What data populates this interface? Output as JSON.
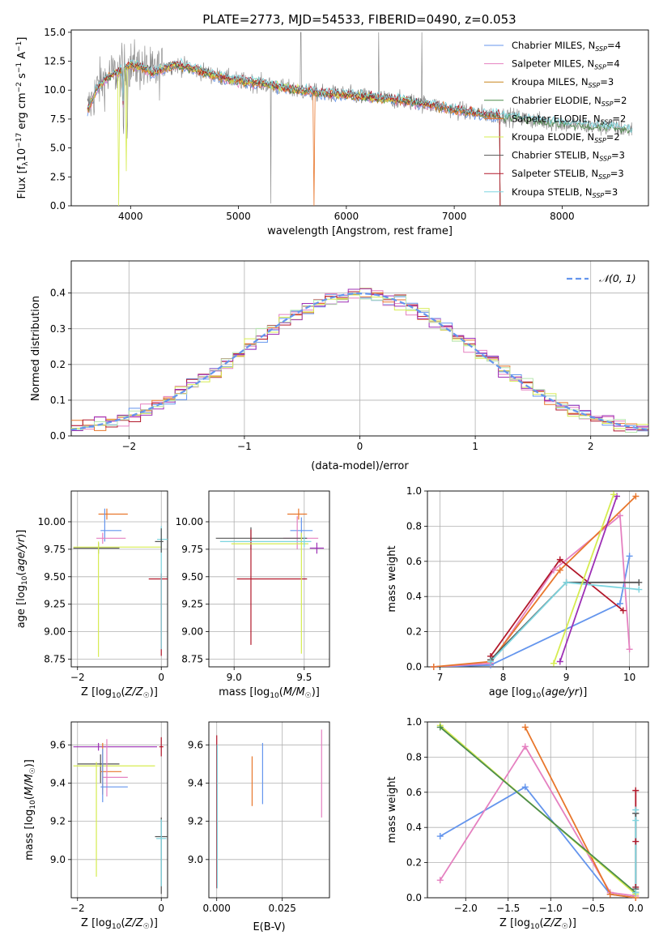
{
  "figure": {
    "title": "PLATE=2773, MJD=54533, FIBERID=0490, z=0.053"
  },
  "chart_data": [
    {
      "id": "spectrum",
      "type": "line",
      "title": "PLATE=2773, MJD=54533, FIBERID=0490, z=0.053",
      "xlabel": "wavelength [Angstrom, rest frame]",
      "ylabel": "Flux [f_λ10^-17 erg cm^-2 s^-1 A^-1]",
      "xlim": [
        3450,
        8800
      ],
      "ylim": [
        0,
        15.2
      ],
      "xticks": [
        4000,
        5000,
        6000,
        7000,
        8000
      ],
      "yticks": [
        0.0,
        2.5,
        5.0,
        7.5,
        10.0,
        12.5,
        15.0
      ],
      "ytick_labels": [
        "0.0",
        "2.5",
        "5.0",
        "7.5",
        "10.0",
        "12.5",
        "15.0"
      ],
      "grid": false,
      "legend_position": "top-right",
      "legend": [
        {
          "label": "Chabrier MILES, N_SSP=4",
          "color": "#6495ED"
        },
        {
          "label": "Salpeter MILES, N_SSP=4",
          "color": "#E580C0"
        },
        {
          "label": "Kroupa MILES, N_SSP=3",
          "color": "#C8861E"
        },
        {
          "label": "Chabrier ELODIE, N_SSP=2",
          "color": "#4C8C4C"
        },
        {
          "label": "Salpeter ELODIE, N_SSP=2",
          "color": "#E8762B"
        },
        {
          "label": "Kroupa ELODIE, N_SSP=2",
          "color": "#D6EC50"
        },
        {
          "label": "Chabrier STELIB, N_SSP=3",
          "color": "#555555"
        },
        {
          "label": "Salpeter STELIB, N_SSP=3",
          "color": "#B2182B"
        },
        {
          "label": "Kroupa STELIB, N_SSP=3",
          "color": "#7ED6E0"
        }
      ],
      "continuum": {
        "x": [
          3600,
          3700,
          3800,
          3900,
          4000,
          4100,
          4200,
          4400,
          4600,
          4800,
          5000,
          5200,
          5400,
          5600,
          5800,
          6000,
          6200,
          6400,
          6600,
          6800,
          7000,
          7200,
          7400,
          7600,
          7800,
          8000,
          8200,
          8400,
          8600
        ],
        "y": [
          8.2,
          10.4,
          11.2,
          11.6,
          12.2,
          12.0,
          11.5,
          12.2,
          11.8,
          11.2,
          10.8,
          10.6,
          10.2,
          9.9,
          9.7,
          9.6,
          9.4,
          9.2,
          9.0,
          8.7,
          8.3,
          8.0,
          7.8,
          7.6,
          7.3,
          7.1,
          6.9,
          6.8,
          6.6
        ]
      },
      "data_color": "#808080"
    },
    {
      "id": "residuals",
      "type": "line",
      "xlabel": "(data-model)/error",
      "ylabel": "Normed distribution",
      "xlim": [
        -2.5,
        2.5
      ],
      "ylim": [
        0,
        0.49
      ],
      "xticks": [
        -2,
        -1,
        0,
        1,
        2
      ],
      "xtick_labels": [
        "−2",
        "−1",
        "0",
        "1",
        "2"
      ],
      "yticks": [
        0.0,
        0.1,
        0.2,
        0.3,
        0.4
      ],
      "ytick_labels": [
        "0.0",
        "0.1",
        "0.2",
        "0.3",
        "0.4"
      ],
      "grid": true,
      "legend_position": "top-right",
      "legend": [
        {
          "label": "𝒩(0, 1)",
          "color": "#6495ED"
        }
      ],
      "bin_width": 0.1,
      "hist_colors": [
        "#6495ED",
        "#E580C0",
        "#E8762B",
        "#B2182B",
        "#D6EC50",
        "#9D2FB5",
        "#B8E6B0"
      ]
    },
    {
      "id": "age-vs-z",
      "type": "scatter",
      "xlabel": "Z [log10(Z/Z☉)]",
      "ylabel": "age [log10(age/yr)]",
      "xlim": [
        -2.15,
        0.15
      ],
      "ylim": [
        8.68,
        10.28
      ],
      "xticks": [
        -2,
        0
      ],
      "xtick_labels": [
        "−2",
        "0"
      ],
      "yticks": [
        8.75,
        9.0,
        9.25,
        9.5,
        9.75,
        10.0
      ],
      "ytick_labels": [
        "8.75",
        "9.00",
        "9.25",
        "9.50",
        "9.75",
        "10.00"
      ],
      "grid": true,
      "points": [
        {
          "x": -1.3,
          "y": 10.07,
          "xerr": [
            0.2,
            0.5
          ],
          "yerr": [
            0.05,
            0.05
          ],
          "color": "#E8762B"
        },
        {
          "x": -1.35,
          "y": 9.92,
          "xerr": [
            0.1,
            0.4
          ],
          "yerr": [
            0.1,
            0.2
          ],
          "color": "#6495ED"
        },
        {
          "x": -1.4,
          "y": 9.85,
          "xerr": [
            0.15,
            0.55
          ],
          "yerr": [
            0.05,
            0.05
          ],
          "color": "#E580C0"
        },
        {
          "x": -1.5,
          "y": 9.76,
          "xerr": [
            0.6,
            0.5
          ],
          "yerr": [
            0.05,
            0.05
          ],
          "color": "#555555"
        },
        {
          "x": -1.5,
          "y": 9.77,
          "xerr": [
            0.6,
            1.5
          ],
          "yerr": [
            1.0,
            0.05
          ],
          "color": "#D6EC50"
        },
        {
          "x": 0.0,
          "y": 9.48,
          "xerr": [
            0.3,
            0.2
          ],
          "yerr": [
            0.7,
            0.05
          ],
          "color": "#B2182B"
        },
        {
          "x": 0.0,
          "y": 9.84,
          "xerr": [
            0.1,
            0.2
          ],
          "yerr": [
            1.0,
            0.12
          ],
          "color": "#7ED6E0"
        },
        {
          "x": 0.0,
          "y": 9.82,
          "xerr": [
            0.15,
            0.05
          ],
          "yerr": [
            0.1,
            0.12
          ],
          "color": "#555555"
        }
      ]
    },
    {
      "id": "age-vs-mass",
      "type": "scatter",
      "xlabel": "mass [log10(M/M☉)]",
      "ylabel": "",
      "xlim": [
        8.82,
        9.68
      ],
      "ylim": [
        8.68,
        10.28
      ],
      "xticks": [
        9.0,
        9.5
      ],
      "xtick_labels": [
        "9.0",
        "9.5"
      ],
      "yticks": [
        8.75,
        9.0,
        9.25,
        9.5,
        9.75,
        10.0
      ],
      "ytick_labels": [
        "8.75",
        "9.00",
        "9.25",
        "9.50",
        "9.75",
        "10.00"
      ],
      "grid": true,
      "points": [
        {
          "x": 9.46,
          "y": 10.07,
          "xerr": [
            0.08,
            0.06
          ],
          "yerr": [
            0.05,
            0.05
          ],
          "color": "#E8762B"
        },
        {
          "x": 9.48,
          "y": 9.92,
          "xerr": [
            0.08,
            0.08
          ],
          "yerr": [
            0.12,
            0.12
          ],
          "color": "#6495ED"
        },
        {
          "x": 9.45,
          "y": 9.85,
          "xerr": [
            0.1,
            0.15
          ],
          "yerr": [
            0.1,
            0.2
          ],
          "color": "#E580C0"
        },
        {
          "x": 9.12,
          "y": 9.85,
          "xerr": [
            0.25,
            0.4
          ],
          "yerr": [
            0.1,
            0.1
          ],
          "color": "#555555"
        },
        {
          "x": 9.12,
          "y": 9.48,
          "xerr": [
            0.1,
            0.4
          ],
          "yerr": [
            0.6,
            0.45
          ],
          "color": "#B2182B"
        },
        {
          "x": 9.48,
          "y": 9.8,
          "xerr": [
            0.5,
            0.05
          ],
          "yerr": [
            1.0,
            0.1
          ],
          "color": "#D6EC50"
        },
        {
          "x": 9.5,
          "y": 9.82,
          "xerr": [
            0.6,
            0.05
          ],
          "yerr": [
            0.05,
            0.05
          ],
          "color": "#7ED6E0"
        },
        {
          "x": 9.59,
          "y": 9.76,
          "xerr": [
            0.05,
            0.05
          ],
          "yerr": [
            0.05,
            0.05
          ],
          "color": "#9D2FB5"
        }
      ]
    },
    {
      "id": "weight-vs-age",
      "type": "line",
      "xlabel": "age [log10(age/yr)]",
      "ylabel": "mass weight",
      "xlim": [
        6.8,
        10.3
      ],
      "ylim": [
        0,
        1.0
      ],
      "xticks": [
        7,
        8,
        9,
        10
      ],
      "yticks": [
        0.0,
        0.2,
        0.4,
        0.6,
        0.8,
        1.0
      ],
      "ytick_labels": [
        "0.0",
        "0.2",
        "0.4",
        "0.6",
        "0.8",
        "1.0"
      ],
      "grid": true,
      "series": [
        {
          "color": "#6495ED",
          "x": [
            6.9,
            7.8,
            9.85,
            10.0
          ],
          "y": [
            0.0,
            0.01,
            0.36,
            0.63
          ]
        },
        {
          "color": "#E580C0",
          "x": [
            6.9,
            7.8,
            8.8,
            9.85,
            10.0
          ],
          "y": [
            0.0,
            0.02,
            0.55,
            0.86,
            0.1
          ]
        },
        {
          "color": "#E8762B",
          "x": [
            6.9,
            7.8,
            8.9,
            10.1
          ],
          "y": [
            0.0,
            0.03,
            0.55,
            0.97
          ]
        },
        {
          "color": "#B2182B",
          "x": [
            7.8,
            8.9,
            9.9
          ],
          "y": [
            0.06,
            0.61,
            0.32
          ]
        },
        {
          "color": "#555555",
          "x": [
            7.8,
            9.0,
            10.15
          ],
          "y": [
            0.04,
            0.48,
            0.48
          ]
        },
        {
          "color": "#7ED6E0",
          "x": [
            7.8,
            9.0,
            10.15
          ],
          "y": [
            0.03,
            0.48,
            0.44
          ]
        },
        {
          "color": "#9D2FB5",
          "x": [
            8.9,
            9.8
          ],
          "y": [
            0.03,
            0.97
          ]
        },
        {
          "color": "#D6EC50",
          "x": [
            8.8,
            9.75
          ],
          "y": [
            0.02,
            0.98
          ]
        }
      ]
    },
    {
      "id": "mass-vs-z",
      "type": "scatter",
      "xlabel": "Z [log10(Z/Z☉)]",
      "ylabel": "mass [log10(M/M☉)]",
      "xlim": [
        -2.15,
        0.15
      ],
      "ylim": [
        8.8,
        9.72
      ],
      "xticks": [
        -2,
        0
      ],
      "xtick_labels": [
        "−2",
        "0"
      ],
      "yticks": [
        9.0,
        9.2,
        9.4,
        9.6
      ],
      "ytick_labels": [
        "9.0",
        "9.2",
        "9.4",
        "9.6"
      ],
      "grid": true,
      "points": [
        {
          "x": -1.5,
          "y": 9.59,
          "xerr": [
            0.6,
            1.4
          ],
          "yerr": [
            0.02,
            0.02
          ],
          "color": "#9D2FB5"
        },
        {
          "x": -1.45,
          "y": 9.5,
          "xerr": [
            0.55,
            0.45
          ],
          "yerr": [
            0.1,
            0.05
          ],
          "color": "#555555"
        },
        {
          "x": -1.55,
          "y": 9.49,
          "xerr": [
            0.55,
            1.4
          ],
          "yerr": [
            0.58,
            0.02
          ],
          "color": "#D6EC50"
        },
        {
          "x": -1.4,
          "y": 9.46,
          "xerr": [
            0.05,
            0.45
          ],
          "yerr": [
            0.12,
            0.15
          ],
          "color": "#E8762B"
        },
        {
          "x": -1.3,
          "y": 9.43,
          "xerr": [
            0.1,
            0.5
          ],
          "yerr": [
            0.1,
            0.2
          ],
          "color": "#E580C0"
        },
        {
          "x": -1.4,
          "y": 9.38,
          "xerr": [
            0.05,
            0.6
          ],
          "yerr": [
            0.08,
            0.2
          ],
          "color": "#6495ED"
        },
        {
          "x": 0.0,
          "y": 9.59,
          "xerr": [
            0.05,
            0.05
          ],
          "yerr": [
            0.05,
            0.05
          ],
          "color": "#B2182B"
        },
        {
          "x": 0.0,
          "y": 9.12,
          "xerr": [
            0.15,
            0.15
          ],
          "yerr": [
            0.3,
            0.1
          ],
          "color": "#555555"
        },
        {
          "x": 0.0,
          "y": 9.11,
          "xerr": [
            0.12,
            0.12
          ],
          "yerr": [
            0.25,
            0.1
          ],
          "color": "#7ED6E0"
        }
      ]
    },
    {
      "id": "mass-vs-ebv",
      "type": "scatter",
      "xlabel": "E(B-V)",
      "ylabel": "",
      "xlim": [
        -0.003,
        0.043
      ],
      "ylim": [
        8.8,
        9.72
      ],
      "xticks": [
        0.0,
        0.025
      ],
      "xtick_labels": [
        "0.000",
        "0.025"
      ],
      "yticks": [
        9.0,
        9.2,
        9.4,
        9.6
      ],
      "ytick_labels": [
        "9.0",
        "9.2",
        "9.4",
        "9.6"
      ],
      "grid": true,
      "points": [
        {
          "x": 0.0,
          "y": 9.35,
          "yerr": [
            0.5,
            0.3
          ],
          "color": "#B2182B"
        },
        {
          "x": 0.0002,
          "y": 9.3,
          "yerr": [
            0.45,
            0.3
          ],
          "color": "#7ED6E0"
        },
        {
          "x": 0.0135,
          "y": 9.41,
          "yerr": [
            0.13,
            0.13
          ],
          "color": "#E8762B"
        },
        {
          "x": 0.0175,
          "y": 9.45,
          "yerr": [
            0.16,
            0.16
          ],
          "color": "#6495ED"
        },
        {
          "x": 0.04,
          "y": 9.45,
          "yerr": [
            0.23,
            0.23
          ],
          "color": "#E580C0"
        }
      ]
    },
    {
      "id": "weight-vs-z",
      "type": "line",
      "xlabel": "Z [log10(Z/Z☉)]",
      "ylabel": "mass weight",
      "xlim": [
        -2.45,
        0.15
      ],
      "ylim": [
        0,
        1.0
      ],
      "xticks": [
        -2.0,
        -1.5,
        -1.0,
        -0.5,
        0.0
      ],
      "xtick_labels": [
        "−2.0",
        "−1.5",
        "−1.0",
        "−0.5",
        "0.0"
      ],
      "yticks": [
        0.0,
        0.2,
        0.4,
        0.6,
        0.8,
        1.0
      ],
      "ytick_labels": [
        "0.0",
        "0.2",
        "0.4",
        "0.6",
        "0.8",
        "1.0"
      ],
      "grid": true,
      "series": [
        {
          "color": "#6495ED",
          "x": [
            -2.3,
            -1.3,
            -0.3,
            0.0
          ],
          "y": [
            0.35,
            0.63,
            0.02,
            0.0
          ]
        },
        {
          "color": "#E580C0",
          "x": [
            -2.3,
            -1.3,
            -0.3,
            0.0
          ],
          "y": [
            0.1,
            0.86,
            0.03,
            0.01
          ]
        },
        {
          "color": "#E8762B",
          "x": [
            -1.3,
            -0.3,
            0.0
          ],
          "y": [
            0.97,
            0.02,
            0.0
          ]
        },
        {
          "color": "#D6EC50",
          "x": [
            -2.3,
            0.0
          ],
          "y": [
            0.98,
            0.02
          ]
        },
        {
          "color": "#4C8C4C",
          "x": [
            -2.3,
            0.0
          ],
          "y": [
            0.97,
            0.03
          ]
        },
        {
          "color": "#B2182B",
          "x": [
            0.0,
            0.0,
            0.0
          ],
          "y": [
            0.61,
            0.32,
            0.06
          ]
        },
        {
          "color": "#555555",
          "x": [
            0.0,
            0.0,
            0.0
          ],
          "y": [
            0.48,
            0.05,
            0.48
          ]
        },
        {
          "color": "#7ED6E0",
          "x": [
            0.0,
            0.0,
            0.0
          ],
          "y": [
            0.5,
            0.44,
            0.03
          ]
        }
      ]
    }
  ]
}
